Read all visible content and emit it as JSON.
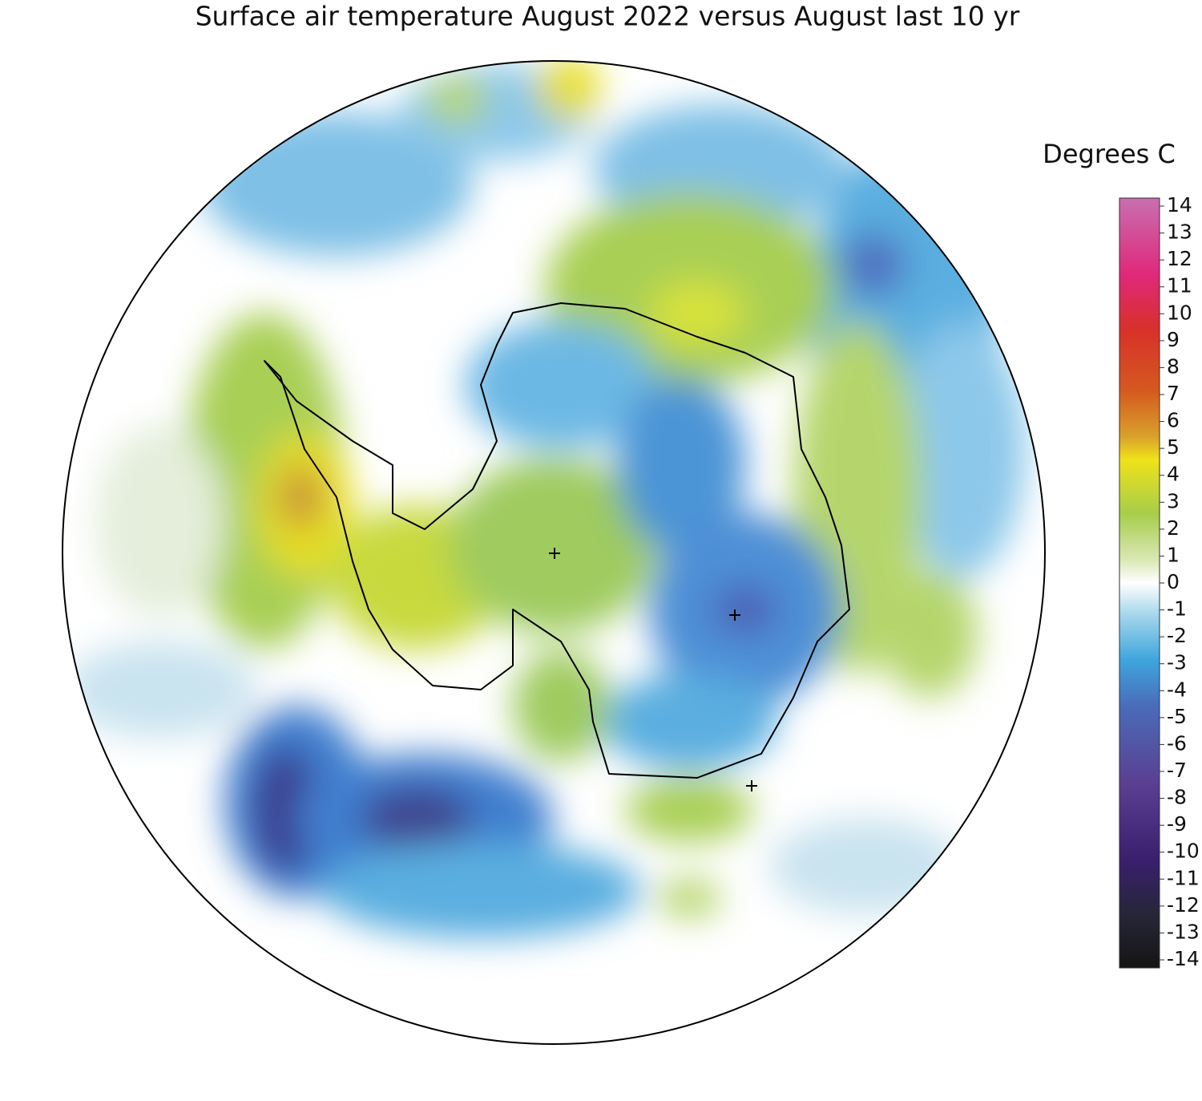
{
  "title": "Surface air temperature August 2022 versus August last 10 yr",
  "colorbar": {
    "label": "Degrees C",
    "range": [
      -14,
      14
    ],
    "ticks": [
      14,
      13,
      12,
      11,
      10,
      9,
      8,
      7,
      6,
      5,
      4,
      3,
      2,
      1,
      0,
      -1,
      -2,
      -3,
      -4,
      -5,
      -6,
      -7,
      -8,
      -9,
      -10,
      -11,
      -12,
      -13,
      -14
    ]
  }
}
